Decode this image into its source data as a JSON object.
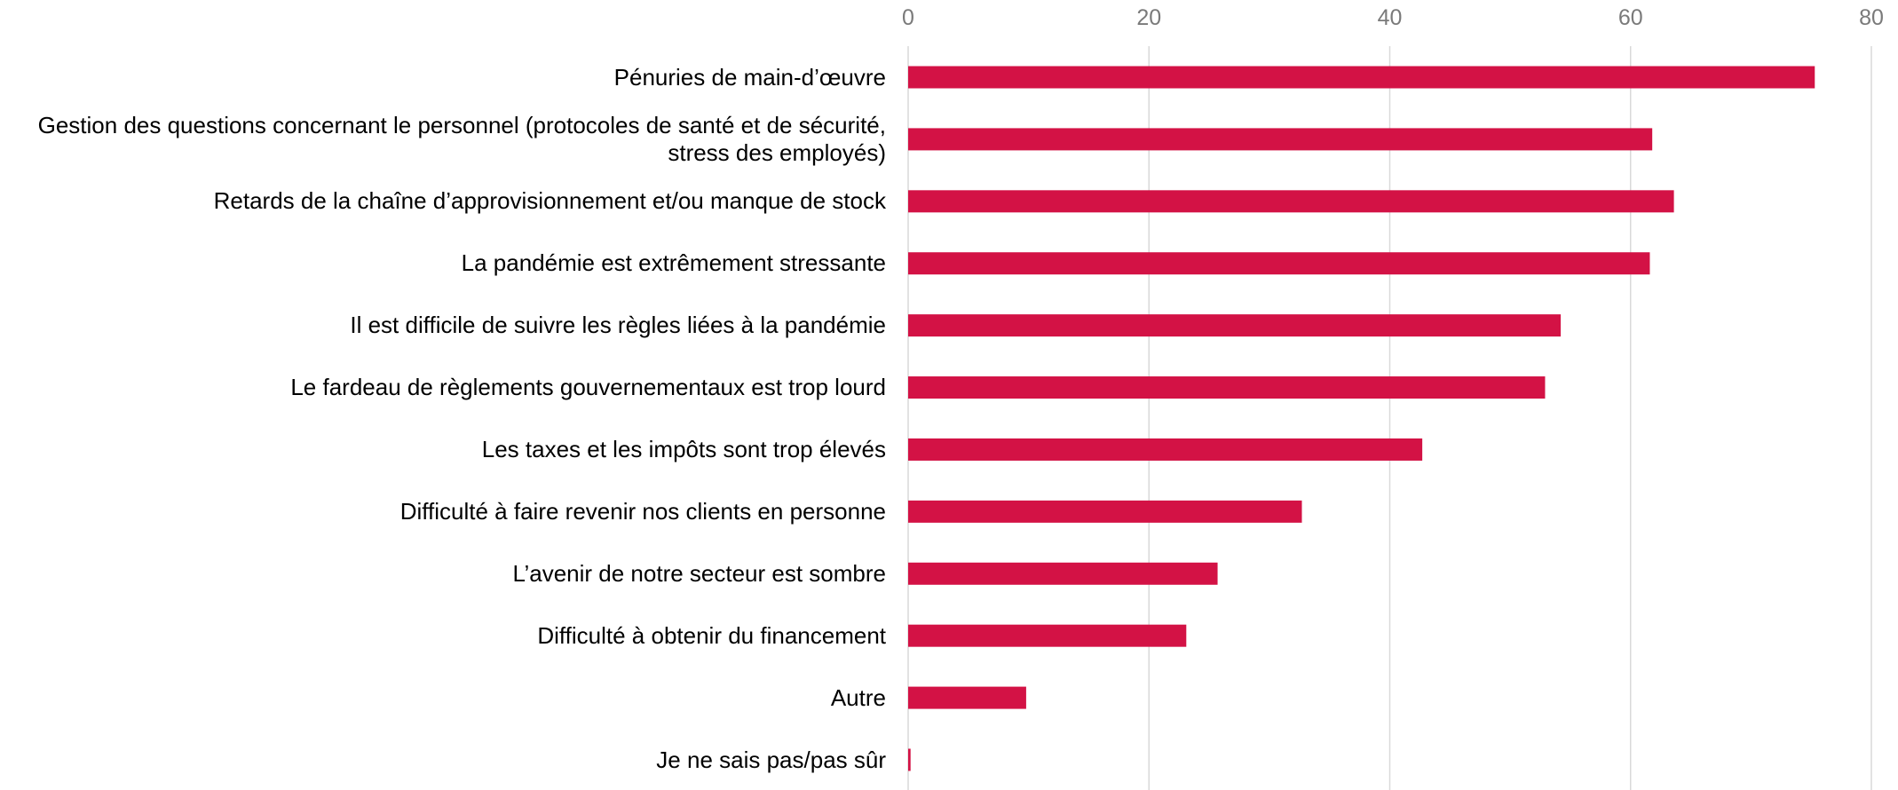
{
  "chart_data": {
    "type": "hbar",
    "categories": [
      "Pénuries de main-d’œuvre",
      "Gestion des questions concernant le personnel (protocoles de santé et de sécurité, stress des employés)",
      "Retards de la chaîne d’approvisionnement et/ou manque de stock",
      "La pandémie est extrêmement stressante",
      "Il est difficile de suivre les règles liées à la pandémie",
      "Le fardeau de règlements gouvernementaux est trop lourd",
      "Les taxes et les impôts sont trop élevés",
      "Difficulté à faire revenir nos clients en personne",
      "L’avenir de notre secteur est sombre",
      "Difficulté à obtenir du financement",
      "Autre",
      "Je ne sais pas/pas sûr"
    ],
    "values": [
      75.3,
      61.8,
      63.6,
      61.6,
      54.2,
      52.9,
      42.7,
      32.7,
      25.7,
      23.1,
      9.8,
      0.2
    ],
    "color": "#d31245",
    "xlim": [
      0,
      80
    ],
    "xticks": [
      0,
      20,
      40,
      60,
      80
    ],
    "grid": true
  }
}
